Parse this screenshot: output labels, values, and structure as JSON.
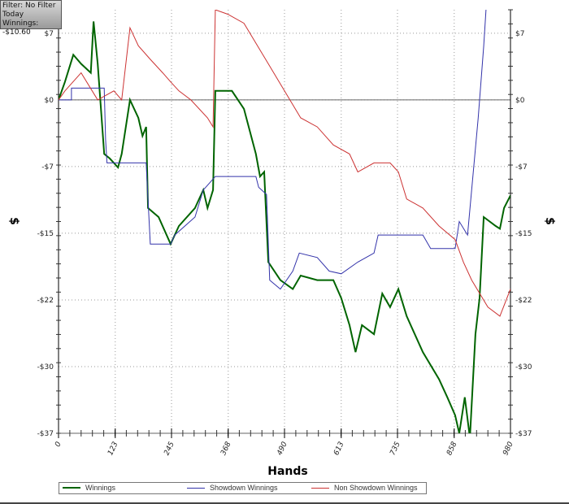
{
  "info": {
    "line1": "Filter: No Filter",
    "line2": "Today",
    "line3": "Winnings: -$10.60"
  },
  "chart_data": {
    "type": "line",
    "xlabel": "Hands",
    "ylabel": "$",
    "xlim": [
      0,
      980
    ],
    "ylim": [
      -37,
      10
    ],
    "xticks": [
      0,
      123,
      245,
      368,
      490,
      613,
      735,
      858,
      980
    ],
    "yticks": [
      {
        "v": 7.4,
        "label": "$7"
      },
      {
        "v": 0,
        "label": "$0"
      },
      {
        "v": -7.4,
        "label": "-$7"
      },
      {
        "v": -14.8,
        "label": "-$15"
      },
      {
        "v": -22.2,
        "label": "-$22"
      },
      {
        "v": -29.6,
        "label": "-$30"
      },
      {
        "v": -37,
        "label": "-$37"
      }
    ],
    "grid": true,
    "legend_position": "bottom",
    "series": [
      {
        "name": "Winnings",
        "color": "#006400",
        "points": [
          [
            0,
            0
          ],
          [
            14,
            2
          ],
          [
            32,
            5
          ],
          [
            49,
            4
          ],
          [
            70,
            3
          ],
          [
            76,
            8.7
          ],
          [
            85,
            4
          ],
          [
            99,
            -6
          ],
          [
            111,
            -6.5
          ],
          [
            129,
            -7.5
          ],
          [
            137,
            -6
          ],
          [
            155,
            0
          ],
          [
            173,
            -2
          ],
          [
            182,
            -4
          ],
          [
            190,
            -3
          ],
          [
            194,
            -12
          ],
          [
            217,
            -13
          ],
          [
            243,
            -16
          ],
          [
            261,
            -14
          ],
          [
            296,
            -12
          ],
          [
            314,
            -10
          ],
          [
            323,
            -12
          ],
          [
            335,
            -10
          ],
          [
            340,
            1
          ],
          [
            376,
            1
          ],
          [
            402,
            -1
          ],
          [
            428,
            -6
          ],
          [
            437,
            -8.5
          ],
          [
            446,
            -8
          ],
          [
            455,
            -18
          ],
          [
            481,
            -20
          ],
          [
            508,
            -21
          ],
          [
            525,
            -19.5
          ],
          [
            561,
            -20
          ],
          [
            596,
            -20
          ],
          [
            613,
            -22
          ],
          [
            631,
            -25
          ],
          [
            644,
            -28
          ],
          [
            658,
            -25
          ],
          [
            684,
            -26
          ],
          [
            702,
            -21.5
          ],
          [
            719,
            -23
          ],
          [
            737,
            -21
          ],
          [
            755,
            -24
          ],
          [
            790,
            -28
          ],
          [
            825,
            -31
          ],
          [
            843,
            -33
          ],
          [
            860,
            -35
          ],
          [
            869,
            -37
          ],
          [
            881,
            -33
          ],
          [
            892,
            -37.5
          ],
          [
            904,
            -26
          ],
          [
            913,
            -22
          ],
          [
            922,
            -13
          ],
          [
            948,
            -14
          ],
          [
            957,
            -14.3
          ],
          [
            966,
            -12
          ],
          [
            980,
            -10.6
          ]
        ]
      },
      {
        "name": "Showdown Winnings",
        "color": "#3333aa",
        "points": [
          [
            0,
            0
          ],
          [
            28,
            0
          ],
          [
            28,
            1.3
          ],
          [
            99,
            1.3
          ],
          [
            102,
            -4.4
          ],
          [
            105,
            -7
          ],
          [
            190,
            -7
          ],
          [
            196,
            -13
          ],
          [
            199,
            -16
          ],
          [
            243,
            -16
          ],
          [
            252,
            -15
          ],
          [
            296,
            -13
          ],
          [
            314,
            -10
          ],
          [
            340,
            -8.5
          ],
          [
            428,
            -8.5
          ],
          [
            434,
            -9.7
          ],
          [
            451,
            -10.5
          ],
          [
            458,
            -20
          ],
          [
            481,
            -21
          ],
          [
            508,
            -19
          ],
          [
            522,
            -17
          ],
          [
            561,
            -17.5
          ],
          [
            587,
            -19
          ],
          [
            613,
            -19.3
          ],
          [
            649,
            -18
          ],
          [
            684,
            -17
          ],
          [
            693,
            -15
          ],
          [
            790,
            -15
          ],
          [
            807,
            -16.5
          ],
          [
            860,
            -16.5
          ],
          [
            869,
            -13.5
          ],
          [
            887,
            -15
          ],
          [
            910,
            -2
          ],
          [
            913,
            0
          ],
          [
            922,
            6
          ],
          [
            927,
            10
          ]
        ]
      },
      {
        "name": "Non Showdown Winnings",
        "color": "#cc3333",
        "points": [
          [
            0,
            0
          ],
          [
            14,
            1
          ],
          [
            49,
            3
          ],
          [
            85,
            0
          ],
          [
            120,
            1
          ],
          [
            137,
            0
          ],
          [
            155,
            8
          ],
          [
            173,
            6
          ],
          [
            199,
            4.5
          ],
          [
            226,
            3
          ],
          [
            243,
            2
          ],
          [
            261,
            1
          ],
          [
            287,
            0
          ],
          [
            305,
            -1
          ],
          [
            323,
            -2
          ],
          [
            335,
            -3
          ],
          [
            340,
            10
          ],
          [
            367,
            9.5
          ],
          [
            402,
            8.5
          ],
          [
            455,
            4
          ],
          [
            490,
            1
          ],
          [
            525,
            -2
          ],
          [
            561,
            -3
          ],
          [
            596,
            -5
          ],
          [
            631,
            -6
          ],
          [
            649,
            -8
          ],
          [
            684,
            -7
          ],
          [
            719,
            -7
          ],
          [
            737,
            -8
          ],
          [
            755,
            -11
          ],
          [
            790,
            -12
          ],
          [
            825,
            -14
          ],
          [
            860,
            -15.5
          ],
          [
            878,
            -18
          ],
          [
            896,
            -20
          ],
          [
            931,
            -23
          ],
          [
            957,
            -24
          ],
          [
            980,
            -21
          ]
        ]
      }
    ]
  }
}
